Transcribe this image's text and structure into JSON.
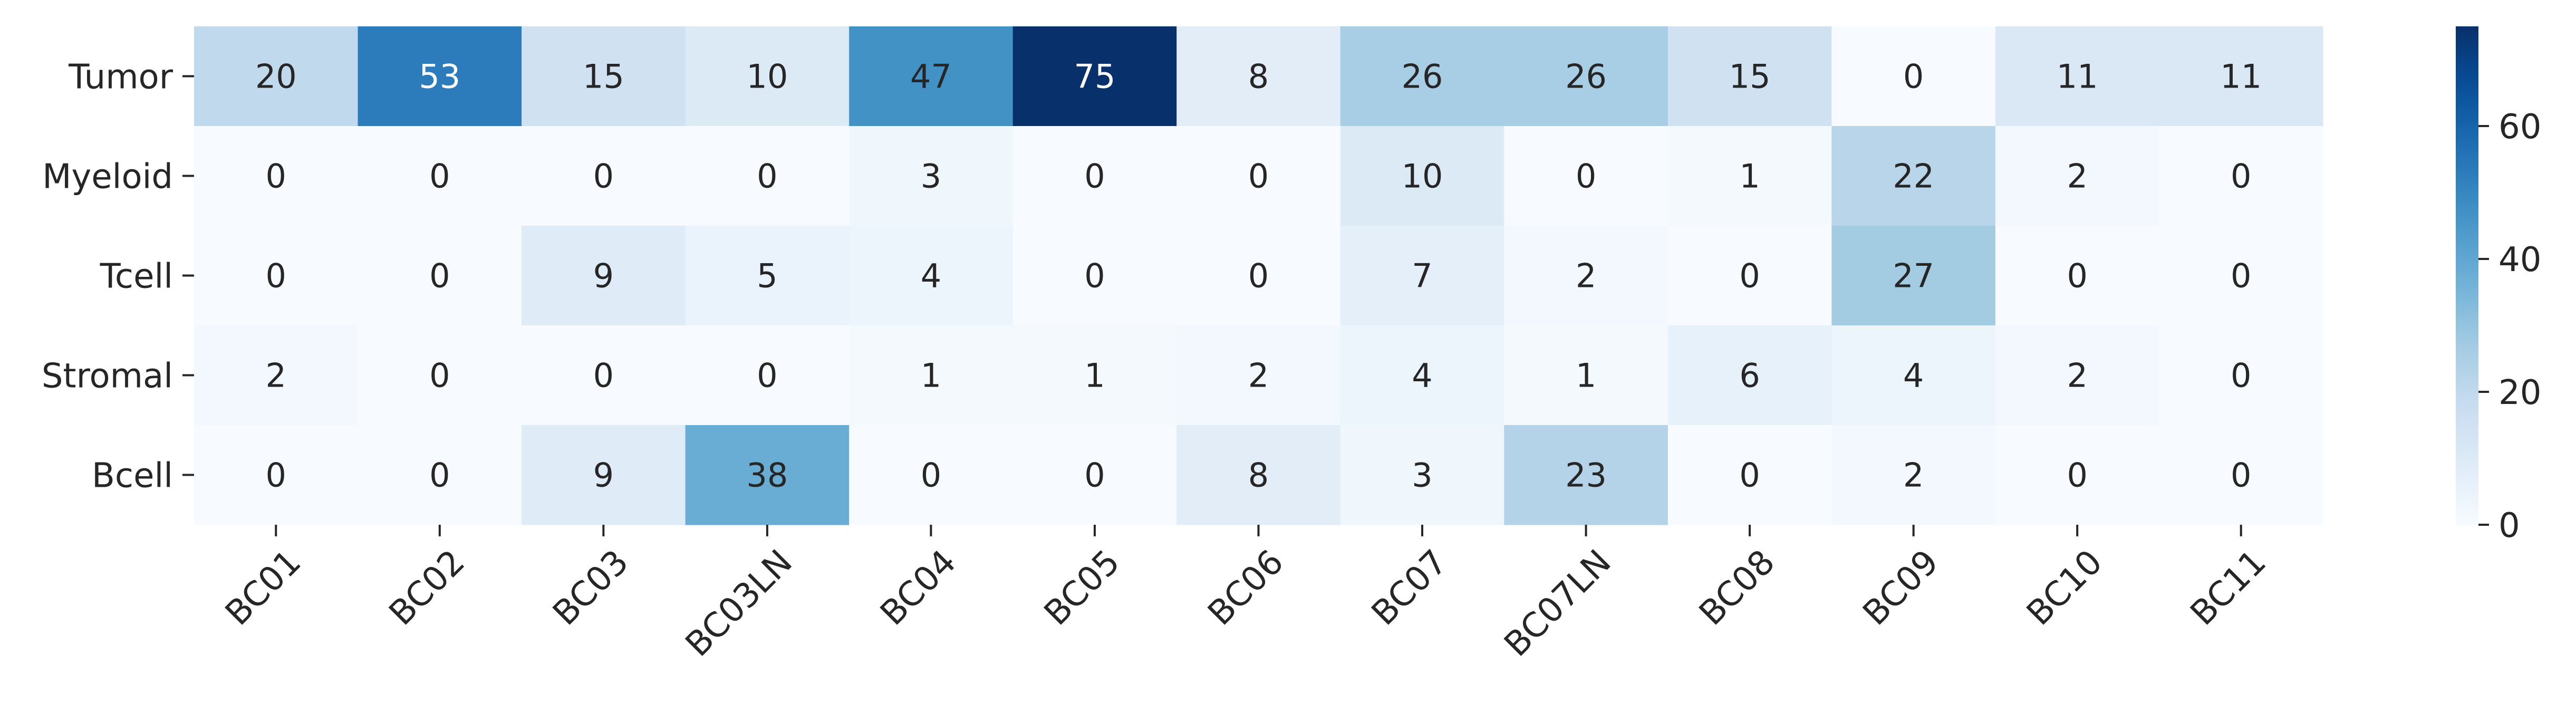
{
  "chart_data": {
    "type": "heatmap",
    "title": "",
    "xlabel": "",
    "ylabel": "",
    "x_labels": [
      "BC01",
      "BC02",
      "BC03",
      "BC03LN",
      "BC04",
      "BC05",
      "BC06",
      "BC07",
      "BC07LN",
      "BC08",
      "BC09",
      "BC10",
      "BC11"
    ],
    "y_labels": [
      "Tumor",
      "Myeloid",
      "Tcell",
      "Stromal",
      "Bcell"
    ],
    "values": [
      [
        20,
        53,
        15,
        10,
        47,
        75,
        8,
        26,
        26,
        15,
        0,
        11,
        11
      ],
      [
        0,
        0,
        0,
        0,
        3,
        0,
        0,
        10,
        0,
        1,
        22,
        2,
        0
      ],
      [
        0,
        0,
        9,
        5,
        4,
        0,
        0,
        7,
        2,
        0,
        27,
        0,
        0
      ],
      [
        2,
        0,
        0,
        0,
        1,
        1,
        2,
        4,
        1,
        6,
        4,
        2,
        0
      ],
      [
        0,
        0,
        9,
        38,
        0,
        0,
        8,
        3,
        23,
        0,
        2,
        0,
        0
      ]
    ],
    "colormap": "Blues",
    "color_range": [
      0,
      75
    ],
    "colorbar_ticks": [
      0,
      20,
      40,
      60
    ],
    "annotations": true,
    "grid": false
  }
}
